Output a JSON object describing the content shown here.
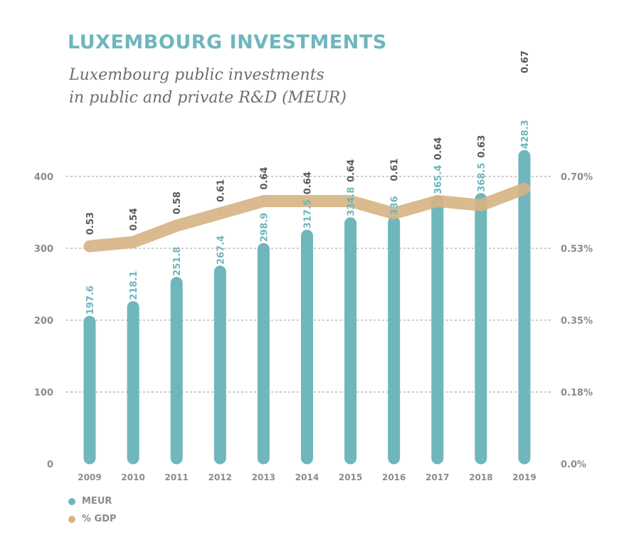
{
  "chart_data": {
    "type": "bar",
    "title": "LUXEMBOURG INVESTMENTS",
    "subtitle_lines": [
      "Luxembourg public investments",
      "in public and private R&D (MEUR)"
    ],
    "categories": [
      "2009",
      "2010",
      "2011",
      "2012",
      "2013",
      "2014",
      "2015",
      "2016",
      "2017",
      "2018",
      "2019"
    ],
    "series": [
      {
        "name": "MEUR",
        "type": "bar",
        "axis": "left",
        "color": "#6fb6bd",
        "values": [
          197.6,
          218.1,
          251.8,
          267.4,
          298.9,
          317.5,
          334.8,
          336,
          365.4,
          368.5,
          428.3
        ],
        "labels": [
          "197.6",
          "218.1",
          "251.8",
          "267.4",
          "298.9",
          "317.5",
          "334.8",
          "336",
          "365.4",
          "368.5",
          "428.3"
        ]
      },
      {
        "name": "% GDP",
        "type": "line",
        "axis": "right",
        "color": "#d6b383",
        "values": [
          0.53,
          0.54,
          0.58,
          0.61,
          0.64,
          0.64,
          0.64,
          0.61,
          0.64,
          0.63,
          0.67
        ],
        "labels": [
          "0.53",
          "0.54",
          "0.58",
          "0.61",
          "0.64",
          "0.64",
          "0.64",
          "0.61",
          "0.64",
          "0.63",
          "0.67"
        ]
      }
    ],
    "y_left": {
      "ticks": [
        "0",
        "100",
        "200",
        "300",
        "400"
      ],
      "range": [
        0,
        400
      ]
    },
    "y_right": {
      "ticks": [
        "0.0%",
        "0.18%",
        "0.35%",
        "0.53%",
        "0.70%"
      ]
    },
    "grid": true,
    "legend_position": "bottom-left"
  }
}
